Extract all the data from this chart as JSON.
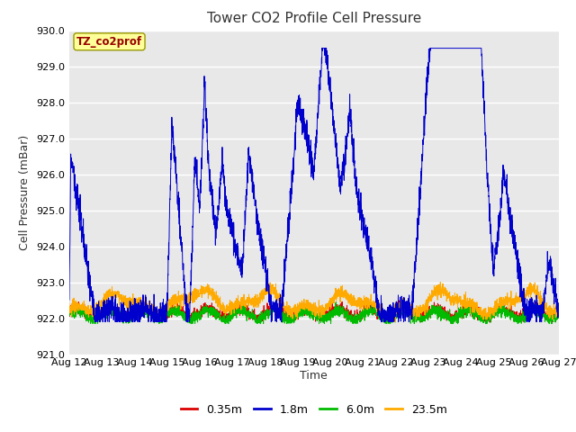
{
  "title": "Tower CO2 Profile Cell Pressure",
  "ylabel": "Cell Pressure (mBar)",
  "xlabel": "Time",
  "ylim": [
    921.0,
    930.0
  ],
  "yticks": [
    921.0,
    922.0,
    923.0,
    924.0,
    925.0,
    926.0,
    927.0,
    928.0,
    929.0,
    930.0
  ],
  "xticklabels": [
    "Aug 12",
    "Aug 13",
    "Aug 14",
    "Aug 15",
    "Aug 16",
    "Aug 17",
    "Aug 18",
    "Aug 19",
    "Aug 20",
    "Aug 21",
    "Aug 22",
    "Aug 23",
    "Aug 24",
    "Aug 25",
    "Aug 26",
    "Aug 27"
  ],
  "legend_label": "TZ_co2prof",
  "legend_label_color": "#990000",
  "legend_label_bg": "#ffff99",
  "legend_label_edge": "#999900",
  "series": [
    {
      "label": "0.35m",
      "color": "#dd0000"
    },
    {
      "label": "1.8m",
      "color": "#0000cc"
    },
    {
      "label": "6.0m",
      "color": "#00bb00"
    },
    {
      "label": "23.5m",
      "color": "#ffaa00"
    }
  ],
  "fig_bg": "#ffffff",
  "plot_bg": "#e8e8e8",
  "grid_color": "#ffffff",
  "title_fontsize": 11,
  "axis_fontsize": 9,
  "tick_fontsize": 8
}
